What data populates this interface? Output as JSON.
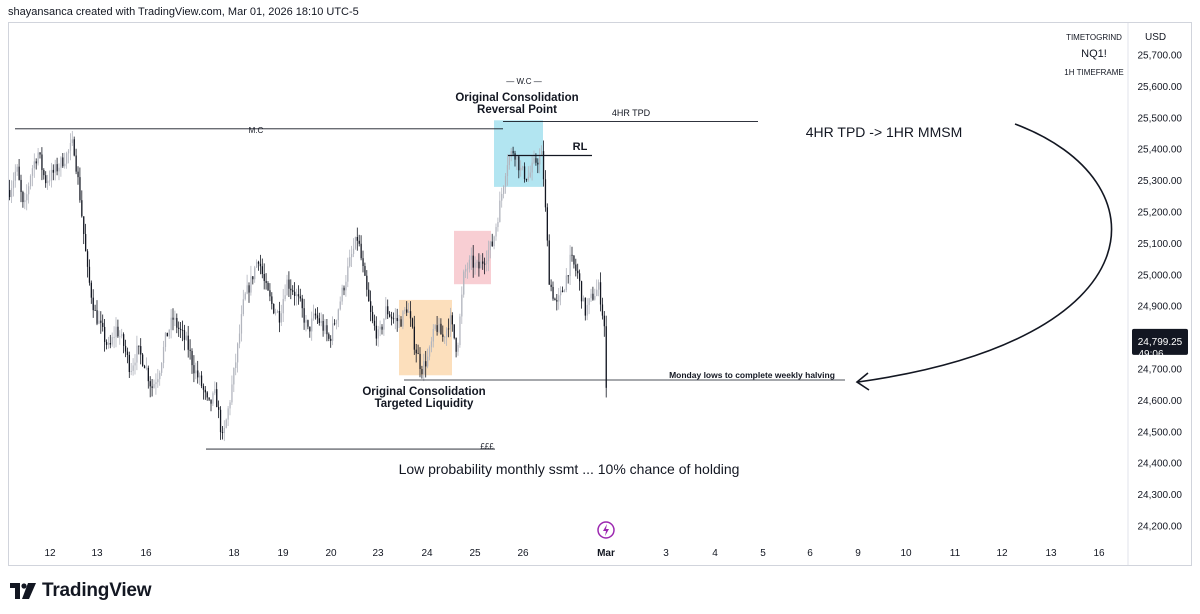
{
  "header": {
    "caption": "shayansanca created with TradingView.com, Mar 01, 2026 18:10 UTC-5"
  },
  "footer": {
    "brand": "TradingView"
  },
  "symbol_info": {
    "account": "TIMETOGRIND",
    "symbol": "NQ1!",
    "timeframe": "1H TIMEFRAME",
    "currency": "USD"
  },
  "price_tag": {
    "price": "24,799.25",
    "countdown": "49:06"
  },
  "colors": {
    "bull": "#b2b5be",
    "bear": "#131722",
    "price_tag": "#131722",
    "zone_blue": "#a5e1ee",
    "zone_red": "#f7c6cb",
    "zone_orange": "#fbd9b0",
    "event_icon": "#9c27b0"
  },
  "annotations": {
    "wc": "— W.C —",
    "reversal_point": [
      "Original Consolidation",
      "Reversal Point"
    ],
    "tpd_4hr": "4HR TPD",
    "mc": "M.C",
    "rl": "RL",
    "note_tpd_mmsm": "4HR TPD -> 1HR MMSM",
    "monday_lows": "Monday lows to complete weekly halving",
    "targeted_liquidity": [
      "Original Consolidation",
      "Targeted Liquidity"
    ],
    "fff": "£££",
    "low_probability": "Low probability monthly ssmt ... 10% chance of holding"
  },
  "chart_data": {
    "type": "candlestick",
    "symbol": "NQ1!",
    "interval": "1H",
    "ylim": [
      24130,
      25780
    ],
    "y_ticks": [
      "25,700.00",
      "25,600.00",
      "25,500.00",
      "25,400.00",
      "25,300.00",
      "25,200.00",
      "25,100.00",
      "25,000.00",
      "24,900.00",
      "24,800.00",
      "24,700.00",
      "24,600.00",
      "24,500.00",
      "24,400.00",
      "24,300.00",
      "24,200.00"
    ],
    "x_ticks": [
      "12",
      "13",
      "16",
      "18",
      "19",
      "20",
      "23",
      "24",
      "25",
      "26",
      "Mar",
      "3",
      "4",
      "5",
      "6",
      "9",
      "10",
      "11",
      "12",
      "13",
      "16"
    ],
    "close_path": [
      25270,
      25340,
      25200,
      25330,
      25390,
      25300,
      25320,
      25350,
      25380,
      25420,
      25230,
      25000,
      24880,
      24820,
      24760,
      24830,
      24780,
      24700,
      24760,
      24720,
      24640,
      24690,
      24800,
      24860,
      24820,
      24780,
      24700,
      24650,
      24580,
      24620,
      24470,
      24600,
      24750,
      24920,
      24980,
      25060,
      24960,
      24900,
      24870,
      24980,
      24950,
      24900,
      24820,
      24870,
      24840,
      24790,
      24870,
      24960,
      25050,
      25120,
      24980,
      24850,
      24800,
      24890,
      24860,
      24850,
      24900,
      24780,
      24700,
      24740,
      24840,
      24800,
      24860,
      24760,
      25010,
      25040,
      25020,
      25060,
      25100,
      25220,
      25360,
      25400,
      25330,
      25310,
      25360,
      25380,
      24980,
      24900,
      24960,
      25050,
      25000,
      24880,
      24930,
      24960,
      24790
    ]
  },
  "price_levels": [
    {
      "name": "mc-line",
      "price": 25465
    },
    {
      "name": "tpd-4hr-line",
      "price": 25488
    },
    {
      "name": "rl-line",
      "price": 25380
    },
    {
      "name": "monday-lows-line",
      "price": 24665
    },
    {
      "name": "fff-line",
      "price": 24445
    }
  ],
  "zones": [
    {
      "name": "reversal-zone",
      "color": "zone_blue",
      "top": 25492,
      "bottom": 25280
    },
    {
      "name": "mid-zone",
      "color": "zone_red",
      "top": 25140,
      "bottom": 24970
    },
    {
      "name": "targeted-liquidity-zone",
      "color": "zone_orange",
      "top": 24920,
      "bottom": 24680
    }
  ]
}
